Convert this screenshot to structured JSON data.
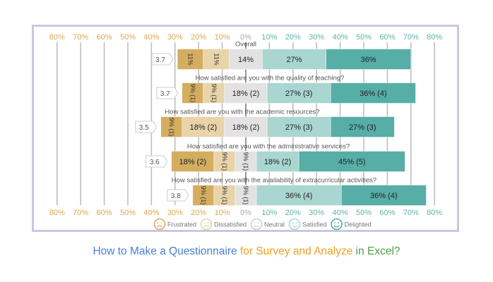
{
  "title": {
    "part1": "How to Make a Questionnaire",
    "part2": "for Survey and Analyze",
    "part3": "in Excel?"
  },
  "chart_data": {
    "type": "bar",
    "orientation": "horizontal-diverging-stacked",
    "axis_ticks": [
      "80%",
      "70%",
      "60%",
      "50%",
      "40%",
      "30%",
      "20%",
      "10%",
      "0%",
      "10%",
      "20%",
      "30%",
      "40%",
      "50%",
      "60%",
      "70%",
      "80%"
    ],
    "xlim": [
      -80,
      80
    ],
    "grid": true,
    "legend_position": "bottom",
    "series": [
      {
        "name": "Frustrated",
        "color": "#d4ad5f",
        "icon": "very-sad-face-icon"
      },
      {
        "name": "Dissatisfied",
        "color": "#e9d4aa",
        "icon": "sad-face-icon"
      },
      {
        "name": "Neutral",
        "color": "#e2e2e2",
        "icon": "neutral-face-icon"
      },
      {
        "name": "Satisfied",
        "color": "#a9d6d0",
        "icon": "smile-face-icon"
      },
      {
        "name": "Delighted",
        "color": "#57aea6",
        "icon": "big-smile-face-icon"
      }
    ],
    "rows": [
      {
        "question": "Overall",
        "average": "3.7",
        "values": [
          11,
          11,
          14,
          27,
          36
        ],
        "labels": [
          "11%",
          "11%",
          "14%",
          "27%",
          "36%"
        ]
      },
      {
        "question": "How satisfied are you with the quality of teaching?",
        "average": "3.7",
        "values": [
          9,
          9,
          18,
          27,
          36
        ],
        "labels": [
          "9% (1)",
          "9% (1)",
          "18% (2)",
          "27% (3)",
          "36% (4)"
        ]
      },
      {
        "question": "How satisfied are you with the academic resources?",
        "average": "3.5",
        "values": [
          9,
          18,
          18,
          27,
          27
        ],
        "labels": [
          "9% (1)",
          "18% (2)",
          "18% (2)",
          "27% (3)",
          "27% (3)"
        ]
      },
      {
        "question": "How satisfied are you with the administrative services?",
        "average": "3.6",
        "values": [
          18,
          9,
          9,
          18,
          45
        ],
        "labels": [
          "18% (2)",
          "9% (1)",
          "9% (1)",
          "18% (2)",
          "45% (5)"
        ]
      },
      {
        "question": "How satisfied are you with the availability of extracurricular activities?",
        "average": "3.8",
        "values": [
          9,
          9,
          9,
          36,
          36
        ],
        "labels": [
          "9% (1)",
          "9% (1)",
          "9% (1)",
          "36% (4)",
          "36% (4)"
        ]
      }
    ],
    "colors": {
      "negative_axis": "#d9a94f",
      "positive_axis": "#5bb5aa",
      "zero_axis": "#aaaaaa"
    }
  }
}
